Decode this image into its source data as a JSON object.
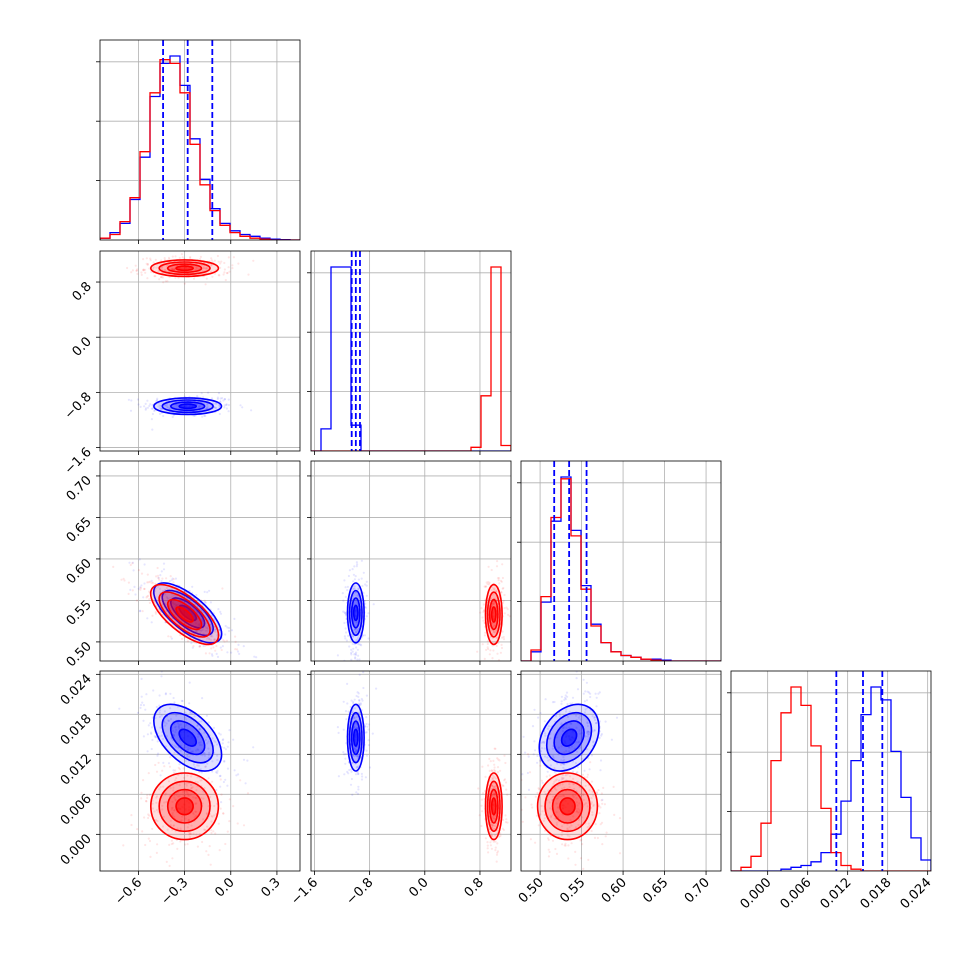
{
  "chart_data": {
    "type": "corner",
    "grid": true,
    "colors": {
      "series_a": "#0000ff",
      "series_b": "#ff0000"
    },
    "params": [
      {
        "range": [
          -0.85,
          0.45
        ],
        "ticks": [
          "−0.6",
          "−0.3",
          "0.0",
          "0.3"
        ],
        "tick_values": [
          -0.6,
          -0.3,
          0.0,
          0.3
        ]
      },
      {
        "range": [
          -1.65,
          1.25
        ],
        "ticks": [
          "−1.6",
          "−0.8",
          "0.0",
          "0.8"
        ],
        "tick_values": [
          -1.6,
          -0.8,
          0.0,
          0.8
        ]
      },
      {
        "range": [
          0.477,
          0.718
        ],
        "ticks": [
          "0.50",
          "0.55",
          "0.60",
          "0.65",
          "0.70"
        ],
        "tick_values": [
          0.5,
          0.55,
          0.6,
          0.65,
          0.7
        ]
      },
      {
        "range": [
          -0.0055,
          0.0245
        ],
        "ticks": [
          "0.000",
          "0.006",
          "0.012",
          "0.018",
          "0.024"
        ],
        "tick_values": [
          0.0,
          0.006,
          0.012,
          0.018,
          0.024
        ]
      }
    ],
    "series": [
      {
        "color": "#0000ff",
        "mean": [
          -0.28,
          -1.0,
          0.535,
          0.0145
        ],
        "sd": [
          0.11,
          0.06,
          0.018,
          0.0025
        ],
        "rho": {
          "0-2": -0.7,
          "0-3": -0.5,
          "2-3": 0.3,
          "0-1": 0.0,
          "1-2": 0.0,
          "1-3": 0.0
        },
        "quantiles": [
          [
            -0.44,
            -0.28,
            -0.12
          ],
          [
            -1.06,
            -1.0,
            -0.94
          ],
          [
            0.517,
            0.535,
            0.556
          ],
          [
            0.0103,
            0.0143,
            0.0172
          ]
        ],
        "hist": [
          [
            0.01,
            0.04,
            0.09,
            0.22,
            0.45,
            0.78,
            0.96,
            1.0,
            0.84,
            0.55,
            0.33,
            0.17,
            0.09,
            0.05,
            0.03,
            0.02,
            0.01,
            0.005,
            0.002,
            0.0
          ],
          [
            0.0,
            0.12,
            1.0,
            1.0,
            0.14,
            0.0,
            0.0,
            0.0,
            0.0,
            0.0,
            0.0,
            0.0,
            0.0,
            0.0,
            0.0,
            0.0,
            0.0,
            0.0,
            0.0,
            0.0
          ],
          [
            0.0,
            0.05,
            0.32,
            0.76,
            1.0,
            0.71,
            0.41,
            0.2,
            0.1,
            0.05,
            0.03,
            0.02,
            0.01,
            0.01,
            0.005,
            0.0,
            0.0,
            0.0,
            0.0,
            0.0
          ],
          [
            0.0,
            0.0,
            0.0,
            0.0,
            0.0,
            0.01,
            0.02,
            0.03,
            0.05,
            0.1,
            0.2,
            0.38,
            0.6,
            0.85,
            1.0,
            0.93,
            0.65,
            0.4,
            0.18,
            0.06
          ]
        ]
      },
      {
        "color": "#ff0000",
        "mean": [
          -0.3,
          1.0,
          0.533,
          0.0042
        ],
        "sd": [
          0.11,
          0.06,
          0.018,
          0.0025
        ],
        "rho": {
          "0-2": -0.7,
          "0-3": 0.0,
          "2-3": 0.0,
          "0-1": 0.0,
          "1-2": 0.0,
          "1-3": 0.0
        },
        "hist": [
          [
            0.01,
            0.03,
            0.1,
            0.23,
            0.48,
            0.8,
            0.98,
            0.96,
            0.8,
            0.52,
            0.3,
            0.16,
            0.08,
            0.04,
            0.02,
            0.01,
            0.005,
            0.0,
            0.0,
            0.0
          ],
          [
            0.0,
            0.0,
            0.0,
            0.0,
            0.0,
            0.0,
            0.0,
            0.0,
            0.0,
            0.0,
            0.0,
            0.0,
            0.0,
            0.0,
            0.0,
            0.0,
            0.02,
            0.3,
            1.0,
            0.03
          ],
          [
            0.0,
            0.06,
            0.35,
            0.78,
            0.99,
            0.68,
            0.39,
            0.19,
            0.1,
            0.05,
            0.03,
            0.02,
            0.01,
            0.005,
            0.0,
            0.0,
            0.0,
            0.0,
            0.0,
            0.0
          ],
          [
            0.0,
            0.02,
            0.08,
            0.26,
            0.6,
            0.86,
            1.0,
            0.9,
            0.68,
            0.34,
            0.1,
            0.03,
            0.01,
            0.0,
            0.0,
            0.0,
            0.0,
            0.0,
            0.0,
            0.0
          ]
        ]
      }
    ]
  }
}
